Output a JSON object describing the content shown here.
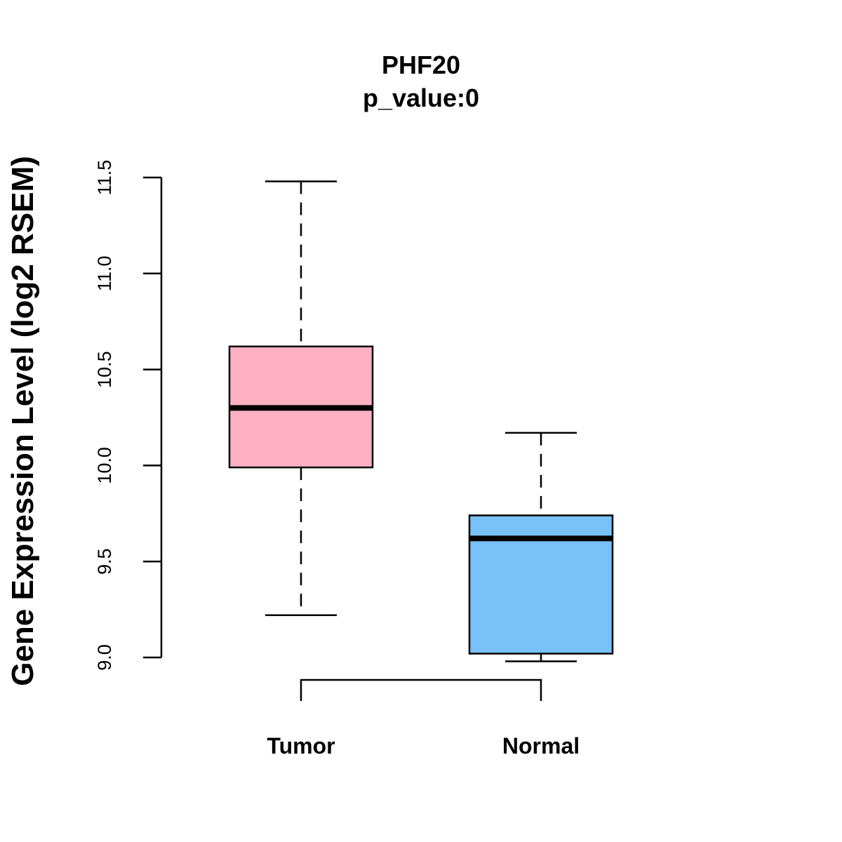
{
  "chart_data": {
    "type": "boxplot",
    "title": "PHF20",
    "subtitle": "p_value:0",
    "xlabel": "",
    "ylabel": "Gene Expression Level (log2 RSEM)",
    "ylim": [
      8.95,
      11.5
    ],
    "yticks": [
      "9.0",
      "9.5",
      "10.0",
      "10.5",
      "11.0",
      "11.5"
    ],
    "categories": [
      "Tumor",
      "Normal"
    ],
    "boxes": [
      {
        "name": "Tumor",
        "color": "#FFB1C3",
        "whisker_low": 9.22,
        "q1": 9.99,
        "median": 10.3,
        "q3": 10.62,
        "whisker_high": 11.48
      },
      {
        "name": "Normal",
        "color": "#78C1F9",
        "whisker_low": 8.98,
        "q1": 9.02,
        "median": 9.62,
        "q3": 9.74,
        "whisker_high": 10.17
      }
    ],
    "comparison_bracket": [
      "Tumor",
      "Normal"
    ],
    "grid": false
  }
}
